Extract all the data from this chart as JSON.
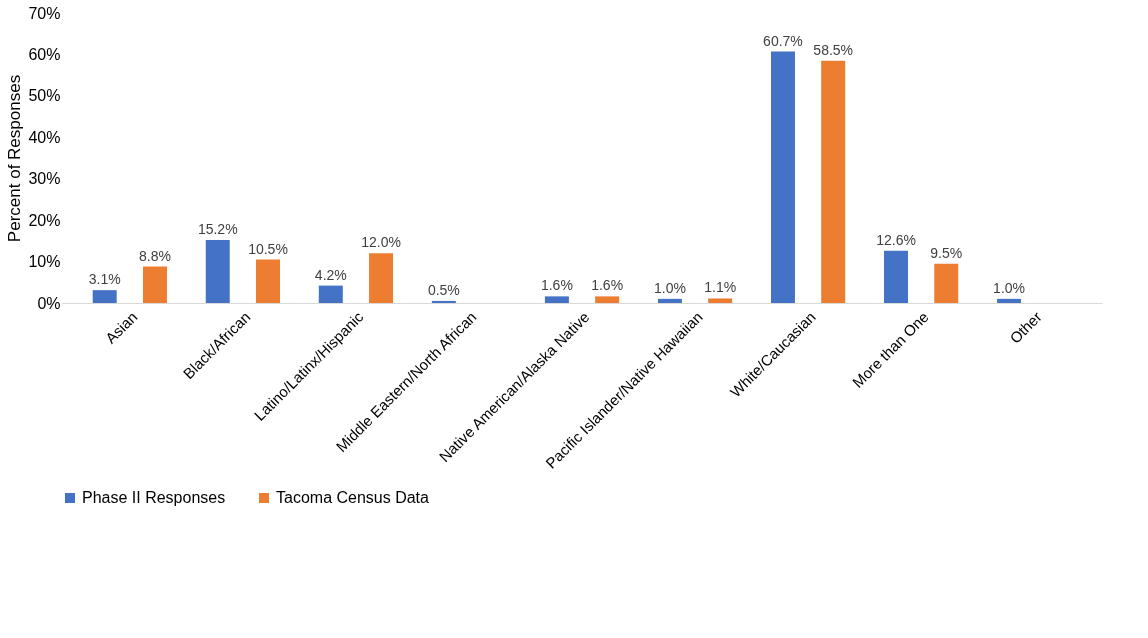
{
  "chart_data": {
    "type": "bar",
    "ylabel": "Percent of Responses",
    "categories": [
      "Asian",
      "Black/African",
      "Latino/Latinx/Hispanic",
      "Middle Eastern/North African",
      "Native American/Alaska Native",
      "Pacific Islander/Native Hawaiian",
      "White/Caucasian",
      "More than One",
      "Other"
    ],
    "series": [
      {
        "name": "Phase II Responses",
        "color": "#4472c4",
        "values": [
          3.1,
          15.2,
          4.2,
          0.5,
          1.6,
          1.0,
          60.7,
          12.6,
          1.0
        ],
        "value_labels": [
          "3.1%",
          "15.2%",
          "4.2%",
          "0.5%",
          "1.6%",
          "1.0%",
          "60.7%",
          "12.6%",
          "1.0%"
        ]
      },
      {
        "name": "Tacoma Census Data",
        "color": "#ed7d31",
        "values": [
          8.8,
          10.5,
          12.0,
          null,
          1.6,
          1.1,
          58.5,
          9.5,
          null
        ],
        "value_labels": [
          "8.8%",
          "10.5%",
          "12.0%",
          null,
          "1.6%",
          "1.1%",
          "58.5%",
          "9.5%",
          null
        ]
      }
    ],
    "ylim": [
      0,
      70
    ],
    "yticks": [
      {
        "value": 0,
        "label": "0%"
      },
      {
        "value": 10,
        "label": "10%"
      },
      {
        "value": 20,
        "label": "20%"
      },
      {
        "value": 30,
        "label": "30%"
      },
      {
        "value": 40,
        "label": "40%"
      },
      {
        "value": 50,
        "label": "50%"
      },
      {
        "value": 60,
        "label": "60%"
      },
      {
        "value": 70,
        "label": "70%"
      }
    ],
    "grid": false,
    "legend": "bottom"
  }
}
